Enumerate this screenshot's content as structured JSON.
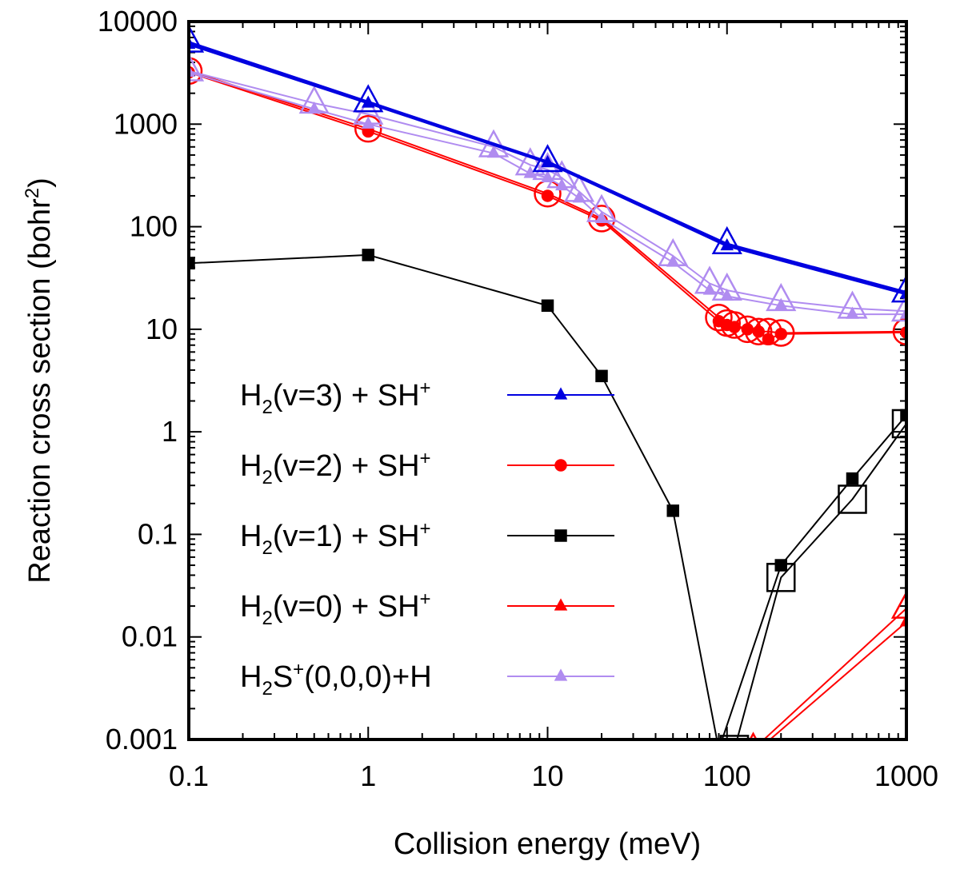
{
  "chart_data": {
    "type": "line",
    "xscale": "log",
    "yscale": "log",
    "xlim": [
      0.1,
      1000
    ],
    "ylim": [
      0.001,
      10000
    ],
    "xlabel": "Collision energy (meV)",
    "ylabel": {
      "main": "Reaction cross section (bohr",
      "sup": "2",
      "close": ")"
    },
    "x_ticks": [
      {
        "value": 0.1,
        "label": "0.1"
      },
      {
        "value": 1,
        "label": "1"
      },
      {
        "value": 10,
        "label": "10"
      },
      {
        "value": 100,
        "label": "100"
      },
      {
        "value": 1000,
        "label": "1000"
      }
    ],
    "y_ticks": [
      {
        "value": 0.001,
        "label": "0.001"
      },
      {
        "value": 0.01,
        "label": "0.01"
      },
      {
        "value": 0.1,
        "label": "0.1"
      },
      {
        "value": 1,
        "label": "1"
      },
      {
        "value": 10,
        "label": "10"
      },
      {
        "value": 100,
        "label": "100"
      },
      {
        "value": 1000,
        "label": "1000"
      },
      {
        "value": 10000,
        "label": "10000"
      }
    ],
    "series": [
      {
        "id": "v3",
        "color": "#0000e0",
        "width": 3,
        "legend": {
          "a": "H",
          "sub": "2",
          "b": "(v=3) + SH",
          "sup": "+",
          "c": ""
        },
        "filled_marker": "triangle",
        "filled": [
          {
            "x": 0.1,
            "y": 6000
          },
          {
            "x": 1,
            "y": 1600
          },
          {
            "x": 10,
            "y": 420
          },
          {
            "x": 100,
            "y": 65
          },
          {
            "x": 1000,
            "y": 22
          }
        ],
        "open_marker": "triangle",
        "open": [
          {
            "x": 0.1,
            "y": 6300
          },
          {
            "x": 1,
            "y": 1650
          },
          {
            "x": 10,
            "y": 430
          },
          {
            "x": 100,
            "y": 68
          },
          {
            "x": 1000,
            "y": 23
          }
        ]
      },
      {
        "id": "h2s",
        "color": "#b08cf0",
        "width": 2,
        "legend": {
          "a": "H",
          "sub": "2",
          "b": "S",
          "sup": "+",
          "c": "(0,0,0)+H"
        },
        "filled_marker": "triangle",
        "filled": [
          {
            "x": 0.1,
            "y": 3200
          },
          {
            "x": 0.5,
            "y": 1400
          },
          {
            "x": 1,
            "y": 1000
          },
          {
            "x": 5,
            "y": 520
          },
          {
            "x": 8,
            "y": 330
          },
          {
            "x": 10,
            "y": 300
          },
          {
            "x": 12,
            "y": 250
          },
          {
            "x": 15,
            "y": 190
          },
          {
            "x": 20,
            "y": 120
          },
          {
            "x": 50,
            "y": 45
          },
          {
            "x": 80,
            "y": 24
          },
          {
            "x": 100,
            "y": 21
          },
          {
            "x": 200,
            "y": 17
          },
          {
            "x": 500,
            "y": 14
          },
          {
            "x": 1000,
            "y": 14
          }
        ],
        "open_marker": "triangle",
        "open": [
          {
            "x": 0.1,
            "y": 3300
          },
          {
            "x": 0.5,
            "y": 1600
          },
          {
            "x": 1,
            "y": 1250
          },
          {
            "x": 5,
            "y": 600
          },
          {
            "x": 8,
            "y": 400
          },
          {
            "x": 10,
            "y": 360
          },
          {
            "x": 12,
            "y": 300
          },
          {
            "x": 15,
            "y": 220
          },
          {
            "x": 20,
            "y": 140
          },
          {
            "x": 50,
            "y": 52
          },
          {
            "x": 80,
            "y": 28
          },
          {
            "x": 100,
            "y": 24
          },
          {
            "x": 200,
            "y": 19
          },
          {
            "x": 500,
            "y": 16
          },
          {
            "x": 1000,
            "y": 15
          }
        ]
      },
      {
        "id": "v2",
        "color": "#ff0000",
        "width": 2,
        "legend": {
          "a": "H",
          "sub": "2",
          "b": "(v=2) + SH",
          "sup": "+",
          "c": ""
        },
        "filled_marker": "circle",
        "filled": [
          {
            "x": 0.1,
            "y": 3200
          },
          {
            "x": 1,
            "y": 850
          },
          {
            "x": 10,
            "y": 200
          },
          {
            "x": 20,
            "y": 115
          },
          {
            "x": 90,
            "y": 12
          },
          {
            "x": 100,
            "y": 11
          },
          {
            "x": 110,
            "y": 10.5
          },
          {
            "x": 130,
            "y": 10
          },
          {
            "x": 150,
            "y": 9.5
          },
          {
            "x": 170,
            "y": 8
          },
          {
            "x": 200,
            "y": 9
          },
          {
            "x": 1000,
            "y": 9.3
          }
        ],
        "open_marker": "circle",
        "open": [
          {
            "x": 0.1,
            "y": 3300
          },
          {
            "x": 1,
            "y": 900
          },
          {
            "x": 10,
            "y": 210
          },
          {
            "x": 20,
            "y": 120
          },
          {
            "x": 90,
            "y": 13
          },
          {
            "x": 100,
            "y": 11.5
          },
          {
            "x": 110,
            "y": 11
          },
          {
            "x": 130,
            "y": 10
          },
          {
            "x": 150,
            "y": 9.5
          },
          {
            "x": 170,
            "y": 9.5
          },
          {
            "x": 200,
            "y": 9.2
          },
          {
            "x": 1000,
            "y": 9.5
          }
        ]
      },
      {
        "id": "v1",
        "color": "#000000",
        "width": 2,
        "legend": {
          "a": "H",
          "sub": "2",
          "b": "(v=1) + SH",
          "sup": "+",
          "c": ""
        },
        "filled_marker": "square",
        "filled": [
          {
            "x": 0.1,
            "y": 44
          },
          {
            "x": 1,
            "y": 53
          },
          {
            "x": 10,
            "y": 17
          },
          {
            "x": 20,
            "y": 3.5
          },
          {
            "x": 50,
            "y": 0.17
          },
          {
            "x": 90,
            "y": 0.0008
          },
          {
            "x": 200,
            "y": 0.05
          },
          {
            "x": 500,
            "y": 0.35
          },
          {
            "x": 1000,
            "y": 1.45
          }
        ],
        "open_marker": "square",
        "open": [
          {
            "x": 110,
            "y": 0.0008
          },
          {
            "x": 200,
            "y": 0.038
          },
          {
            "x": 500,
            "y": 0.22
          },
          {
            "x": 1000,
            "y": 1.2
          }
        ]
      },
      {
        "id": "v0",
        "color": "#ff0000",
        "width": 2,
        "legend": {
          "a": "H",
          "sub": "2",
          "b": "(v=0) + SH",
          "sup": "+",
          "c": ""
        },
        "filled_marker": "triangle",
        "filled": [
          {
            "x": 150,
            "y": 0.0008
          },
          {
            "x": 1000,
            "y": 0.014
          }
        ],
        "open_marker": "triangle",
        "open": [
          {
            "x": 140,
            "y": 0.0008
          },
          {
            "x": 1000,
            "y": 0.019
          }
        ]
      }
    ],
    "legend_order": [
      "v3",
      "v2",
      "v1",
      "v0",
      "h2s"
    ],
    "legend_position": "lower-left"
  }
}
